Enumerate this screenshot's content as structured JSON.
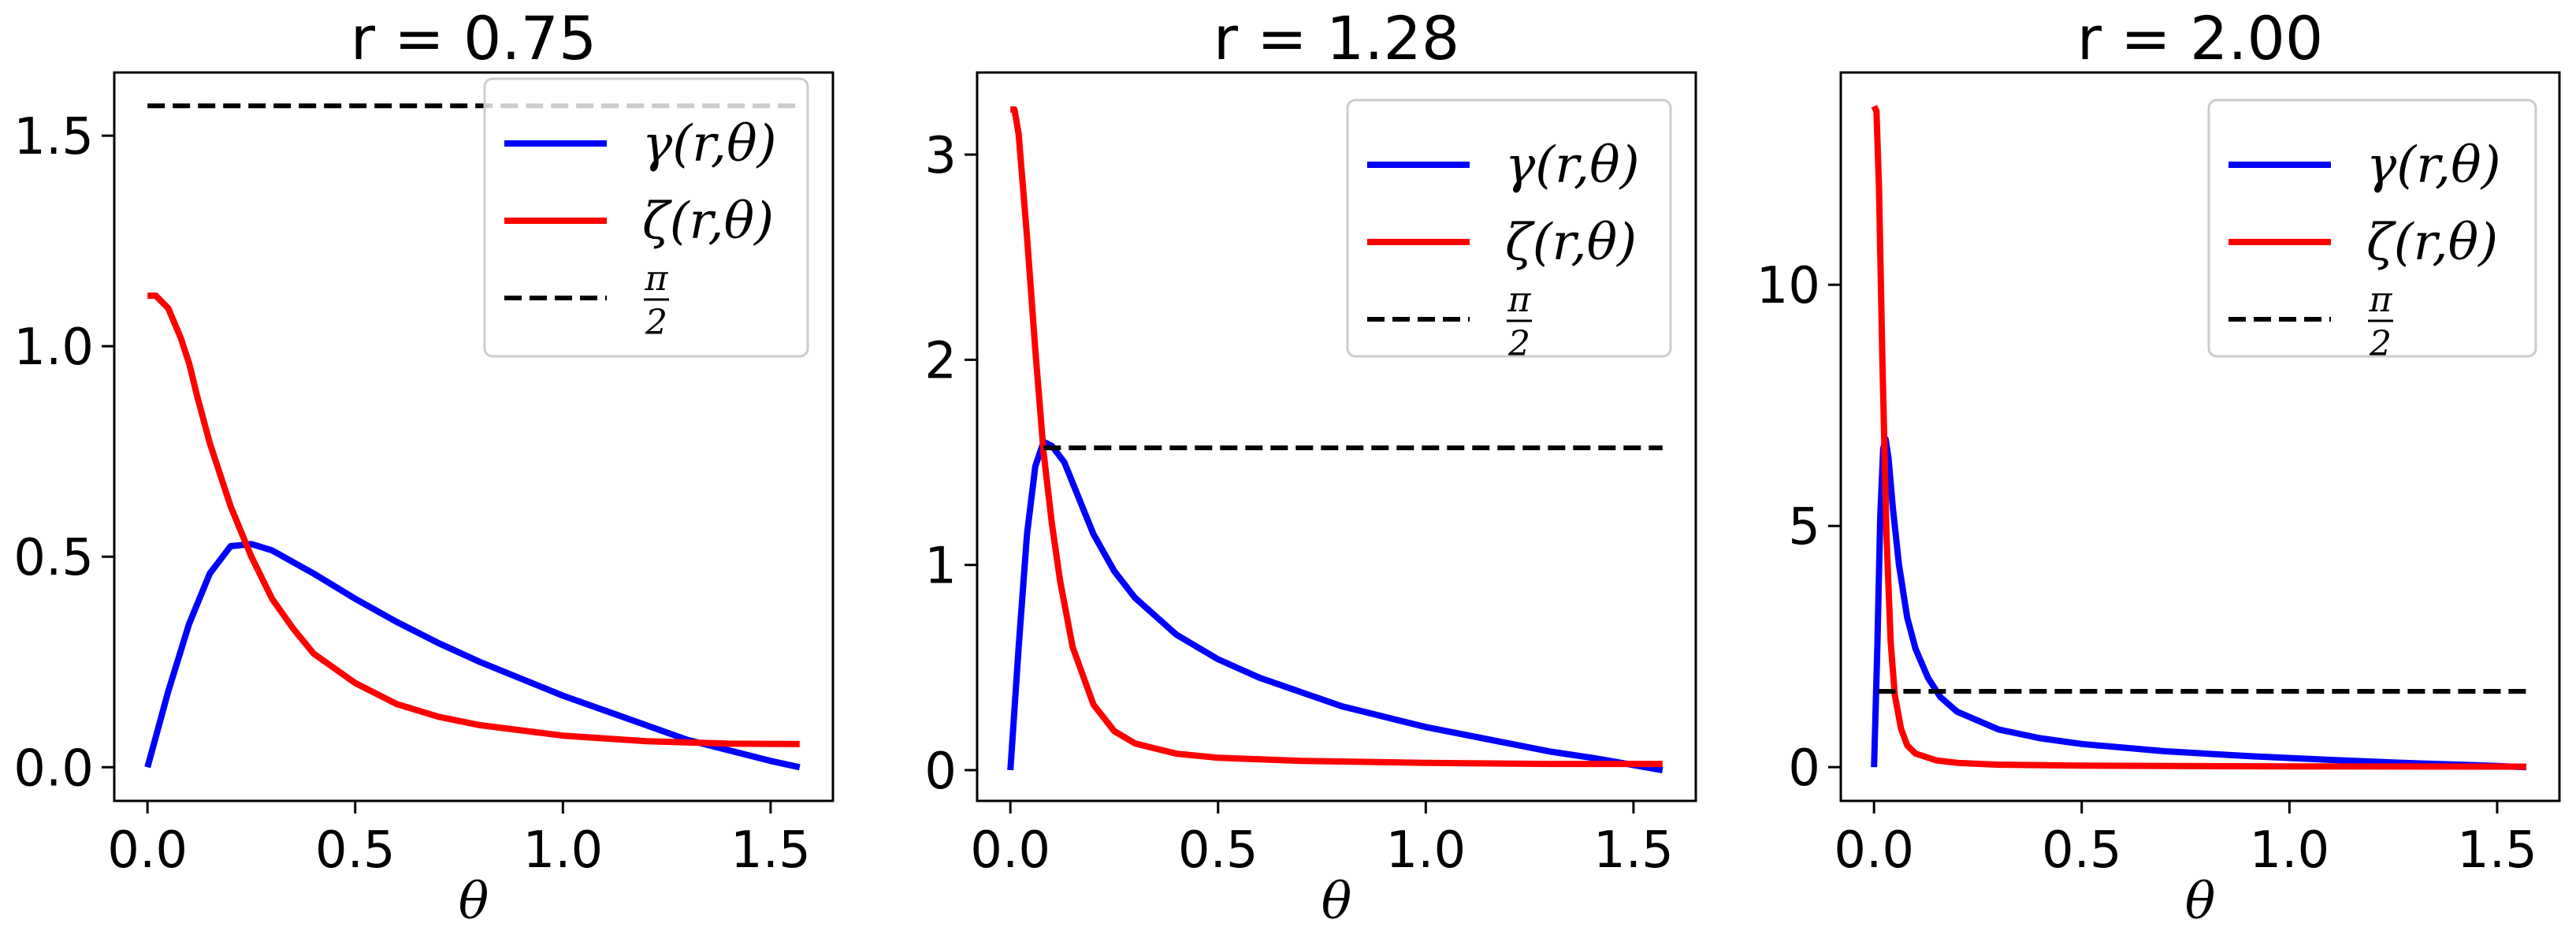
{
  "chart_data": [
    {
      "type": "line",
      "title": "r = 0.75",
      "title_var": "r",
      "title_value": "0.75",
      "xlabel": "θ",
      "ylabel": "",
      "xlim": [
        -0.08,
        1.65
      ],
      "ylim": [
        -0.08,
        1.65
      ],
      "xticks": [
        0.0,
        0.5,
        1.0,
        1.5
      ],
      "xtick_labels": [
        "0.0",
        "0.5",
        "1.0",
        "1.5"
      ],
      "yticks": [
        0.0,
        0.5,
        1.0,
        1.5
      ],
      "ytick_labels": [
        "0.0",
        "0.5",
        "1.0",
        "1.5"
      ],
      "grid": false,
      "legend_position": "top-right",
      "series": [
        {
          "name": "γ(r,θ)",
          "color": "#0000ff",
          "style": "solid",
          "points": [
            [
              0,
              0
            ],
            [
              0.05,
              0.18
            ],
            [
              0.1,
              0.34
            ],
            [
              0.15,
              0.46
            ],
            [
              0.2,
              0.525
            ],
            [
              0.25,
              0.53
            ],
            [
              0.3,
              0.515
            ],
            [
              0.4,
              0.46
            ],
            [
              0.5,
              0.4
            ],
            [
              0.6,
              0.345
            ],
            [
              0.7,
              0.295
            ],
            [
              0.8,
              0.25
            ],
            [
              0.9,
              0.21
            ],
            [
              1.0,
              0.17
            ],
            [
              1.1,
              0.135
            ],
            [
              1.2,
              0.1
            ],
            [
              1.3,
              0.065
            ],
            [
              1.4,
              0.04
            ],
            [
              1.5,
              0.015
            ],
            [
              1.57,
              0
            ]
          ]
        },
        {
          "name": "ζ(r,θ)",
          "color": "#ff0000",
          "style": "solid",
          "points": [
            [
              0,
              1.12
            ],
            [
              0.02,
              1.12
            ],
            [
              0.05,
              1.09
            ],
            [
              0.08,
              1.02
            ],
            [
              0.1,
              0.96
            ],
            [
              0.12,
              0.88
            ],
            [
              0.15,
              0.77
            ],
            [
              0.2,
              0.62
            ],
            [
              0.25,
              0.5
            ],
            [
              0.3,
              0.4
            ],
            [
              0.35,
              0.33
            ],
            [
              0.4,
              0.27
            ],
            [
              0.5,
              0.2
            ],
            [
              0.6,
              0.15
            ],
            [
              0.7,
              0.12
            ],
            [
              0.8,
              0.1
            ],
            [
              1.0,
              0.075
            ],
            [
              1.2,
              0.062
            ],
            [
              1.4,
              0.056
            ],
            [
              1.57,
              0.055
            ]
          ]
        },
        {
          "name": "π/2",
          "color": "#000000",
          "style": "dashed",
          "points": [
            [
              0,
              1.5708
            ],
            [
              1.57,
              1.5708
            ]
          ]
        }
      ]
    },
    {
      "type": "line",
      "title": "r = 1.28",
      "title_var": "r",
      "title_value": "1.28",
      "xlabel": "θ",
      "ylabel": "",
      "xlim": [
        -0.08,
        1.65
      ],
      "ylim": [
        -0.15,
        3.4
      ],
      "xticks": [
        0.0,
        0.5,
        1.0,
        1.5
      ],
      "xtick_labels": [
        "0.0",
        "0.5",
        "1.0",
        "1.5"
      ],
      "yticks": [
        0,
        1,
        2,
        3
      ],
      "ytick_labels": [
        "0",
        "1",
        "2",
        "3"
      ],
      "grid": false,
      "legend_position": "top-right",
      "series": [
        {
          "name": "γ(r,θ)",
          "color": "#0000ff",
          "style": "solid",
          "points": [
            [
              0,
              0
            ],
            [
              0.02,
              0.6
            ],
            [
              0.04,
              1.15
            ],
            [
              0.06,
              1.48
            ],
            [
              0.08,
              1.6
            ],
            [
              0.1,
              1.58
            ],
            [
              0.13,
              1.5
            ],
            [
              0.16,
              1.35
            ],
            [
              0.2,
              1.15
            ],
            [
              0.25,
              0.97
            ],
            [
              0.3,
              0.84
            ],
            [
              0.4,
              0.66
            ],
            [
              0.5,
              0.54
            ],
            [
              0.6,
              0.45
            ],
            [
              0.7,
              0.38
            ],
            [
              0.8,
              0.31
            ],
            [
              0.9,
              0.26
            ],
            [
              1.0,
              0.21
            ],
            [
              1.1,
              0.17
            ],
            [
              1.2,
              0.13
            ],
            [
              1.3,
              0.09
            ],
            [
              1.4,
              0.06
            ],
            [
              1.5,
              0.025
            ],
            [
              1.57,
              0
            ]
          ]
        },
        {
          "name": "ζ(r,θ)",
          "color": "#ff0000",
          "style": "solid",
          "points": [
            [
              0,
              3.22
            ],
            [
              0.01,
              3.22
            ],
            [
              0.02,
              3.1
            ],
            [
              0.04,
              2.6
            ],
            [
              0.06,
              2.05
            ],
            [
              0.08,
              1.55
            ],
            [
              0.1,
              1.2
            ],
            [
              0.12,
              0.92
            ],
            [
              0.15,
              0.6
            ],
            [
              0.2,
              0.32
            ],
            [
              0.25,
              0.19
            ],
            [
              0.3,
              0.13
            ],
            [
              0.4,
              0.08
            ],
            [
              0.5,
              0.06
            ],
            [
              0.7,
              0.045
            ],
            [
              1.0,
              0.035
            ],
            [
              1.3,
              0.03
            ],
            [
              1.57,
              0.03
            ]
          ]
        },
        {
          "name": "π/2",
          "color": "#000000",
          "style": "dashed",
          "points": [
            [
              0.08,
              1.5708
            ],
            [
              1.57,
              1.5708
            ]
          ]
        }
      ]
    },
    {
      "type": "line",
      "title": "r = 2.00",
      "title_var": "r",
      "title_value": "2.00",
      "xlabel": "θ",
      "ylabel": "",
      "xlim": [
        -0.08,
        1.65
      ],
      "ylim": [
        -0.7,
        14.4
      ],
      "xticks": [
        0.0,
        0.5,
        1.0,
        1.5
      ],
      "xtick_labels": [
        "0.0",
        "0.5",
        "1.0",
        "1.5"
      ],
      "yticks": [
        0,
        5,
        10
      ],
      "ytick_labels": [
        "0",
        "5",
        "10"
      ],
      "grid": false,
      "legend_position": "top-right",
      "series": [
        {
          "name": "γ(r,θ)",
          "color": "#0000ff",
          "style": "solid",
          "points": [
            [
              0,
              0
            ],
            [
              0.008,
              2.5
            ],
            [
              0.015,
              5.2
            ],
            [
              0.022,
              6.6
            ],
            [
              0.028,
              6.8
            ],
            [
              0.035,
              6.4
            ],
            [
              0.045,
              5.4
            ],
            [
              0.06,
              4.2
            ],
            [
              0.08,
              3.1
            ],
            [
              0.1,
              2.45
            ],
            [
              0.13,
              1.85
            ],
            [
              0.16,
              1.45
            ],
            [
              0.2,
              1.15
            ],
            [
              0.3,
              0.78
            ],
            [
              0.4,
              0.6
            ],
            [
              0.5,
              0.48
            ],
            [
              0.7,
              0.33
            ],
            [
              0.9,
              0.23
            ],
            [
              1.1,
              0.15
            ],
            [
              1.3,
              0.08
            ],
            [
              1.45,
              0.04
            ],
            [
              1.57,
              0
            ]
          ]
        },
        {
          "name": "ζ(r,θ)",
          "color": "#ff0000",
          "style": "solid",
          "points": [
            [
              0,
              13.7
            ],
            [
              0.006,
              13.6
            ],
            [
              0.012,
              12.0
            ],
            [
              0.02,
              8.5
            ],
            [
              0.03,
              4.8
            ],
            [
              0.04,
              2.6
            ],
            [
              0.05,
              1.5
            ],
            [
              0.065,
              0.8
            ],
            [
              0.08,
              0.45
            ],
            [
              0.1,
              0.28
            ],
            [
              0.15,
              0.14
            ],
            [
              0.2,
              0.09
            ],
            [
              0.3,
              0.05
            ],
            [
              0.5,
              0.03
            ],
            [
              1.0,
              0.015
            ],
            [
              1.57,
              0.01
            ]
          ]
        },
        {
          "name": "π/2",
          "color": "#000000",
          "style": "dashed",
          "points": [
            [
              0.01,
              1.5708
            ],
            [
              1.57,
              1.5708
            ]
          ]
        }
      ]
    }
  ]
}
